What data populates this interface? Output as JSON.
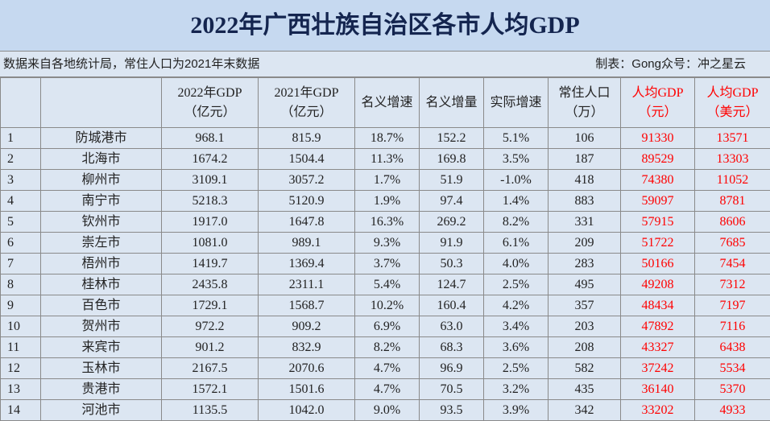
{
  "title": "2022年广西壮族自治区各市人均GDP",
  "note": "数据来自各地统计局，常住人口为2021年末数据",
  "credit": "制表：Gong众号：冲之星云",
  "table": {
    "header": [
      [
        "2022年GDP",
        "（亿元）"
      ],
      [
        "2021年GDP",
        "（亿元）"
      ],
      [
        "名义增速"
      ],
      [
        "名义增量"
      ],
      [
        "实际增速"
      ],
      [
        "常住人口",
        "（万）"
      ],
      [
        "人均GDP",
        "（元）"
      ],
      [
        "人均GDP",
        "（美元）"
      ]
    ],
    "rows": [
      [
        "1",
        "防城港市",
        "968.1",
        "815.9",
        "18.7%",
        "152.2",
        "5.1%",
        "106",
        "91330",
        "13571"
      ],
      [
        "2",
        "北海市",
        "1674.2",
        "1504.4",
        "11.3%",
        "169.8",
        "3.5%",
        "187",
        "89529",
        "13303"
      ],
      [
        "3",
        "柳州市",
        "3109.1",
        "3057.2",
        "1.7%",
        "51.9",
        "-1.0%",
        "418",
        "74380",
        "11052"
      ],
      [
        "4",
        "南宁市",
        "5218.3",
        "5120.9",
        "1.9%",
        "97.4",
        "1.4%",
        "883",
        "59097",
        "8781"
      ],
      [
        "5",
        "钦州市",
        "1917.0",
        "1647.8",
        "16.3%",
        "269.2",
        "8.2%",
        "331",
        "57915",
        "8606"
      ],
      [
        "6",
        "崇左市",
        "1081.0",
        "989.1",
        "9.3%",
        "91.9",
        "6.1%",
        "209",
        "51722",
        "7685"
      ],
      [
        "7",
        "梧州市",
        "1419.7",
        "1369.4",
        "3.7%",
        "50.3",
        "4.0%",
        "283",
        "50166",
        "7454"
      ],
      [
        "8",
        "桂林市",
        "2435.8",
        "2311.1",
        "5.4%",
        "124.7",
        "2.5%",
        "495",
        "49208",
        "7312"
      ],
      [
        "9",
        "百色市",
        "1729.1",
        "1568.7",
        "10.2%",
        "160.4",
        "4.2%",
        "357",
        "48434",
        "7197"
      ],
      [
        "10",
        "贺州市",
        "972.2",
        "909.2",
        "6.9%",
        "63.0",
        "3.4%",
        "203",
        "47892",
        "7116"
      ],
      [
        "11",
        "来宾市",
        "901.2",
        "832.9",
        "8.2%",
        "68.3",
        "3.6%",
        "208",
        "43327",
        "6438"
      ],
      [
        "12",
        "玉林市",
        "2167.5",
        "2070.6",
        "4.7%",
        "96.9",
        "2.5%",
        "582",
        "37242",
        "5534"
      ],
      [
        "13",
        "贵港市",
        "1572.1",
        "1501.6",
        "4.7%",
        "70.5",
        "3.2%",
        "435",
        "36140",
        "5370"
      ],
      [
        "14",
        "河池市",
        "1135.5",
        "1042.0",
        "9.0%",
        "93.5",
        "3.9%",
        "342",
        "33202",
        "4933"
      ]
    ]
  }
}
